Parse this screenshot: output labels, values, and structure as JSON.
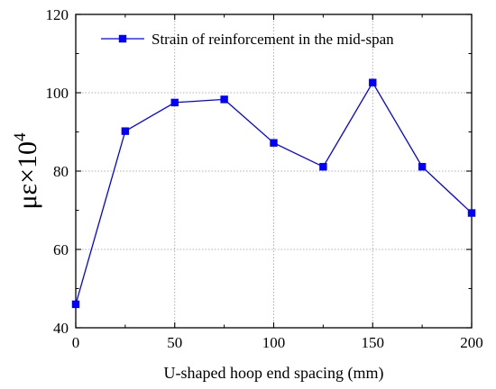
{
  "chart_data": {
    "type": "line",
    "title": "",
    "xlabel": "U-shaped hoop end spacing (mm)",
    "ylabel": {
      "base": "με×10",
      "exponent": "4"
    },
    "xlim": [
      0,
      200
    ],
    "ylim": [
      40,
      120
    ],
    "x_ticks": [
      0,
      50,
      100,
      150,
      200
    ],
    "y_ticks": [
      40,
      60,
      80,
      100,
      120
    ],
    "grid": true,
    "legend_position": "top-right",
    "series": [
      {
        "name": "Strain of reinforcement in the mid-span",
        "color": "#0000ff",
        "marker": "square",
        "x": [
          0,
          25,
          50,
          75,
          100,
          125,
          150,
          175,
          200
        ],
        "y": [
          46,
          90.2,
          97.5,
          98.3,
          87.2,
          81.1,
          102.6,
          81.1,
          69.3
        ]
      }
    ]
  }
}
